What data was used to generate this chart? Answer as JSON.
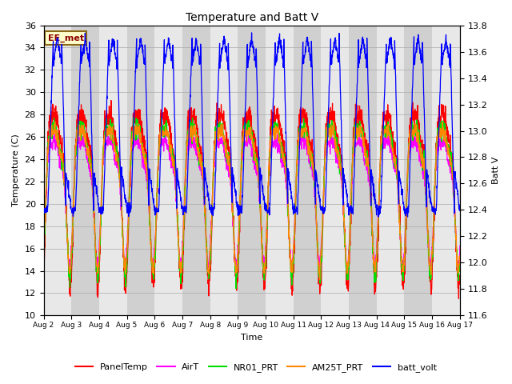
{
  "title": "Temperature and Batt V",
  "xlabel": "Time",
  "ylabel_left": "Temperature (C)",
  "ylabel_right": "Batt V",
  "ylim_left": [
    10,
    36
  ],
  "ylim_right": [
    11.6,
    13.8
  ],
  "annotation": "EE_met",
  "background_color": "#ffffff",
  "plot_bg_color": "#d8d8d8",
  "band_colors": [
    "#e8e8e8",
    "#d0d0d0"
  ],
  "series_colors": {
    "PanelTemp": "#ff0000",
    "AirT": "#ff00ff",
    "NR01_PRT": "#00dd00",
    "AM25T_PRT": "#ff8800",
    "batt_volt": "#0000ff"
  },
  "x_tick_labels": [
    "Aug 2",
    "Aug 3",
    "Aug 4",
    "Aug 5",
    "Aug 6",
    "Aug 7",
    "Aug 8",
    "Aug 9",
    "Aug 10",
    "Aug 11",
    "Aug 12",
    "Aug 13",
    "Aug 14",
    "Aug 15",
    "Aug 16",
    "Aug 17"
  ],
  "n_days": 15,
  "pts_per_day": 144,
  "temp_base": 22,
  "batt_base": 12.7,
  "batt_amp": 1.0
}
